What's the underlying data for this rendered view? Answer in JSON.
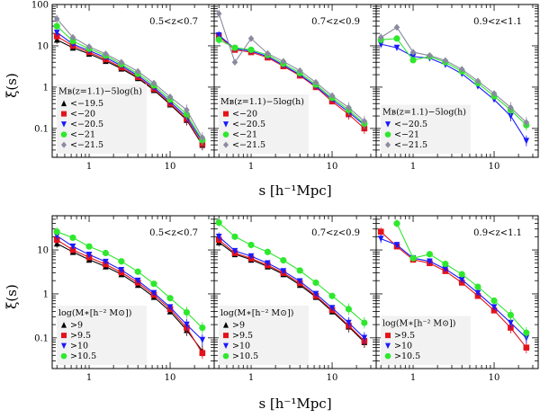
{
  "axis": {
    "xlabel": "s [h⁻¹Mpc]",
    "ylabel": "ξ(s)",
    "xlim": [
      0.35,
      35
    ],
    "ylim_top": [
      0.02,
      100
    ],
    "ylim_bottom": [
      0.02,
      60
    ],
    "xticks": [
      {
        "v": 1,
        "label": "1"
      },
      {
        "v": 10,
        "label": "10"
      }
    ],
    "yticks_top": [
      {
        "v": 0.1,
        "label": "0.1"
      },
      {
        "v": 1,
        "label": "1"
      },
      {
        "v": 10,
        "label": "10"
      },
      {
        "v": 100,
        "label": "100"
      }
    ],
    "yticks_bottom": [
      {
        "v": 0.1,
        "label": "0.1"
      },
      {
        "v": 1,
        "label": "1"
      },
      {
        "v": 10,
        "label": "10"
      }
    ]
  },
  "chart_data": [
    {
      "type": "line",
      "panel": "top-left",
      "zlabel": "0.5<z<0.7",
      "legend_title": "Mʙ(z=1.1)−5log(h)",
      "x": [
        0.4,
        0.63,
        1.0,
        1.6,
        2.5,
        4.0,
        6.3,
        10,
        16,
        25
      ],
      "series": [
        {
          "name": "<−19.5",
          "color": "#000000",
          "marker": "tri-up",
          "values": [
            14,
            9,
            6.4,
            4.3,
            2.8,
            1.65,
            0.85,
            0.38,
            0.16,
            0.04
          ]
        },
        {
          "name": "<−20",
          "color": "#e4131b",
          "marker": "square",
          "values": [
            17,
            10,
            7,
            4.7,
            3.0,
            1.75,
            0.9,
            0.4,
            0.17,
            0.042
          ]
        },
        {
          "name": "<−20.5",
          "color": "#1a1aff",
          "marker": "tri-down",
          "values": [
            21,
            11,
            7.6,
            5.2,
            3.3,
            1.9,
            0.98,
            0.44,
            0.19,
            0.048
          ]
        },
        {
          "name": "<−21",
          "color": "#2ee82e",
          "marker": "circle",
          "values": [
            30,
            13,
            8.5,
            5.8,
            3.6,
            2.1,
            1.1,
            0.5,
            0.22,
            0.052
          ]
        },
        {
          "name": "<−21.5",
          "color": "#8a8aa0",
          "marker": "diamond",
          "values": [
            45,
            16,
            9.5,
            6.4,
            4.0,
            2.4,
            1.25,
            0.58,
            0.28,
            0.06
          ]
        }
      ]
    },
    {
      "type": "line",
      "panel": "top-middle",
      "zlabel": "0.7<z<0.9",
      "legend_title": "Mʙ(z=1.1)−5log(h)",
      "x": [
        0.4,
        0.63,
        1.0,
        1.6,
        2.5,
        4.0,
        6.3,
        10,
        16,
        25
      ],
      "series": [
        {
          "name": "<−20",
          "color": "#e4131b",
          "marker": "square",
          "values": [
            17,
            8,
            7,
            5.2,
            3.2,
            1.9,
            1.0,
            0.45,
            0.22,
            0.1
          ]
        },
        {
          "name": "<−20.5",
          "color": "#1a1aff",
          "marker": "tri-down",
          "values": [
            18,
            8.5,
            7.5,
            5.5,
            3.4,
            2.0,
            1.05,
            0.5,
            0.25,
            0.12
          ]
        },
        {
          "name": "<−21",
          "color": "#2ee82e",
          "marker": "circle",
          "values": [
            14,
            9,
            8,
            6.0,
            3.7,
            2.2,
            1.15,
            0.55,
            0.28,
            0.13
          ]
        },
        {
          "name": "<−21.5",
          "color": "#8a8aa0",
          "marker": "diamond",
          "values": [
            60,
            4,
            15,
            6.5,
            4.2,
            2.5,
            1.3,
            0.62,
            0.32,
            0.15
          ]
        }
      ]
    },
    {
      "type": "line",
      "panel": "top-right",
      "zlabel": "0.9<z<1.1",
      "legend_title": "Mʙ(z=1.1)−5log(h)",
      "x": [
        0.4,
        0.63,
        1.0,
        1.6,
        2.5,
        4.0,
        6.3,
        10,
        16,
        25
      ],
      "series": [
        {
          "name": "<−20.5",
          "color": "#1a1aff",
          "marker": "tri-down",
          "values": [
            11,
            9,
            5.5,
            5.0,
            3.5,
            2.1,
            1.05,
            0.5,
            0.2,
            0.05
          ]
        },
        {
          "name": "<−21",
          "color": "#2ee82e",
          "marker": "circle",
          "values": [
            14,
            15,
            4.5,
            5.5,
            4.0,
            2.4,
            1.25,
            0.6,
            0.28,
            0.12
          ]
        },
        {
          "name": "<−21.5",
          "color": "#8a8aa0",
          "marker": "diamond",
          "values": [
            16,
            28,
            7,
            5.8,
            4.4,
            2.7,
            1.4,
            0.7,
            0.32,
            0.14
          ]
        }
      ]
    },
    {
      "type": "line",
      "panel": "bottom-left",
      "zlabel": "0.5<z<0.7",
      "legend_title": "log(M∗[h⁻² M⊙])",
      "x": [
        0.4,
        0.63,
        1.0,
        1.6,
        2.5,
        4.0,
        6.3,
        10,
        16,
        25
      ],
      "series": [
        {
          "name": ">9",
          "color": "#000000",
          "marker": "tri-up",
          "values": [
            14,
            9,
            6,
            4.2,
            2.8,
            1.6,
            0.85,
            0.4,
            0.15,
            0.05
          ]
        },
        {
          "name": ">9.5",
          "color": "#e4131b",
          "marker": "square",
          "values": [
            17,
            10,
            6.8,
            4.7,
            3.1,
            1.8,
            0.95,
            0.45,
            0.17,
            0.045
          ]
        },
        {
          "name": ">10",
          "color": "#1a1aff",
          "marker": "tri-down",
          "values": [
            21,
            12,
            7.8,
            5.4,
            3.5,
            2.0,
            1.05,
            0.5,
            0.2,
            0.09
          ]
        },
        {
          "name": ">10.5",
          "color": "#2ee82e",
          "marker": "circle",
          "values": [
            26,
            19,
            12,
            8.5,
            5.5,
            3.2,
            1.7,
            0.8,
            0.38,
            0.17
          ]
        }
      ]
    },
    {
      "type": "line",
      "panel": "bottom-middle",
      "zlabel": "0.7<z<0.9",
      "legend_title": "log(M∗[h⁻² M⊙])",
      "x": [
        0.4,
        0.63,
        1.0,
        1.6,
        2.5,
        4.0,
        6.3,
        10,
        16,
        25
      ],
      "series": [
        {
          "name": ">9",
          "color": "#000000",
          "marker": "tri-up",
          "values": [
            15,
            8,
            6,
            4.2,
            2.8,
            1.6,
            0.85,
            0.4,
            0.18,
            0.08
          ]
        },
        {
          "name": ">9.5",
          "color": "#e4131b",
          "marker": "square",
          "values": [
            17,
            8.5,
            6.4,
            4.5,
            3.0,
            1.75,
            0.9,
            0.43,
            0.19,
            0.085
          ]
        },
        {
          "name": ">10",
          "color": "#1a1aff",
          "marker": "tri-down",
          "values": [
            20,
            9.5,
            7.2,
            5.0,
            3.3,
            1.95,
            1.0,
            0.48,
            0.22,
            0.1
          ]
        },
        {
          "name": ">10.5",
          "color": "#2ee82e",
          "marker": "circle",
          "values": [
            42,
            20,
            13,
            9,
            5.8,
            3.4,
            1.8,
            0.9,
            0.45,
            0.22
          ]
        }
      ]
    },
    {
      "type": "line",
      "panel": "bottom-right",
      "zlabel": "0.9<z<1.1",
      "legend_title": "log(M∗[h⁻² M⊙])",
      "x": [
        0.4,
        0.63,
        1.0,
        1.6,
        2.5,
        4.0,
        6.3,
        10,
        16,
        25
      ],
      "series": [
        {
          "name": ">9.5",
          "color": "#e4131b",
          "marker": "square",
          "values": [
            26,
            12,
            6.0,
            5.0,
            3.3,
            1.8,
            0.9,
            0.42,
            0.17,
            0.06
          ]
        },
        {
          "name": ">10",
          "color": "#1a1aff",
          "marker": "tri-down",
          "values": [
            18,
            13,
            6.5,
            5.5,
            3.7,
            2.1,
            1.05,
            0.5,
            0.22,
            0.1
          ]
        },
        {
          "name": ">10.5",
          "color": "#2ee82e",
          "marker": "circle",
          "values": [
            null,
            40,
            6.5,
            8,
            4.8,
            2.8,
            1.45,
            0.7,
            0.33,
            0.13
          ]
        }
      ]
    }
  ]
}
